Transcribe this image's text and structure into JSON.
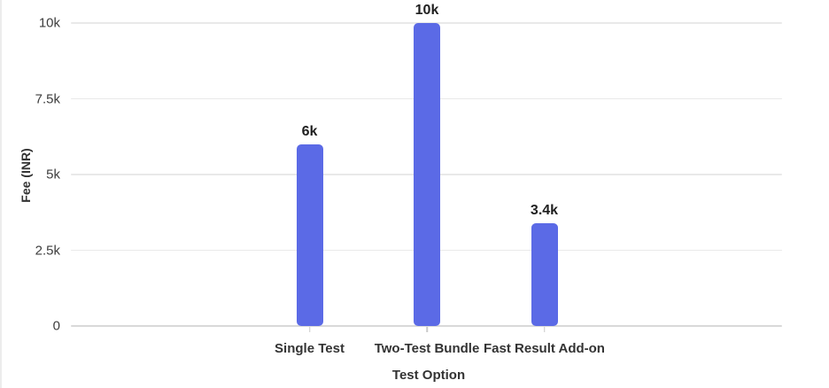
{
  "chart_data": {
    "type": "bar",
    "categories": [
      "Single Test",
      "Two-Test Bundle",
      "Fast Result Add-on"
    ],
    "values": [
      6000,
      10000,
      3400
    ],
    "value_labels": [
      "6k",
      "10k",
      "3.4k"
    ],
    "title": "",
    "xlabel": "Test Option",
    "ylabel": "Fee (INR)",
    "ylim": [
      0,
      10000
    ],
    "yticks": [
      0,
      2500,
      5000,
      7500,
      10000
    ],
    "ytick_labels": [
      "0",
      "2.5k",
      "5k",
      "7.5k",
      "10k"
    ],
    "grid": true,
    "legend": false
  },
  "colors": {
    "bar_fill": "#5b6ae6",
    "gridline": "#e9e9e9",
    "baseline": "#d9d9d9",
    "tick_text": "#3d3d3d",
    "value_text": "#1f1f1f",
    "axis_title_text": "#333333",
    "background": "#ffffff"
  }
}
